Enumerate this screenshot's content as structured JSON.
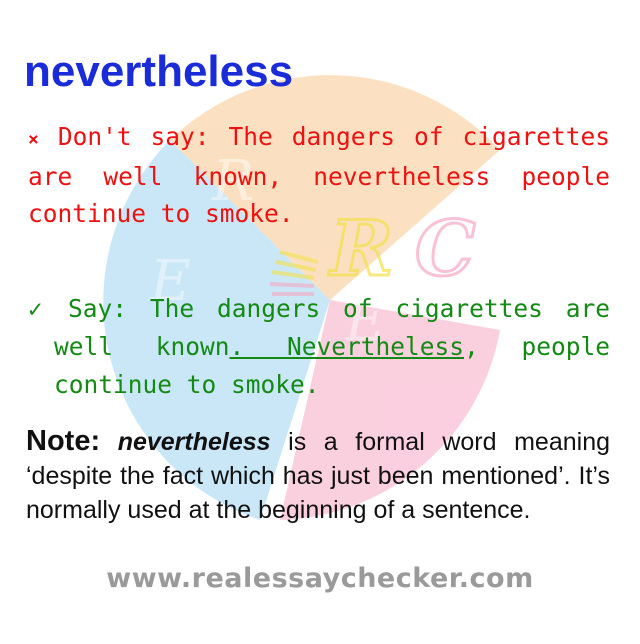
{
  "title": "nevertheless",
  "wrong": {
    "mark": "×",
    "prefix": "Don't say:",
    "sentence": "The dangers of cigarettes are well known, nevertheless people continue to smoke."
  },
  "right": {
    "mark": "✓",
    "prefix": "Say:",
    "part1": "The dangers of cigarettes are well known",
    "underlined": ". Nevertheless",
    "part2": ", people continue to smoke."
  },
  "note": {
    "label": "Note:",
    "term": "nevertheless",
    "text": "is a formal word meaning ‘despite the fact which has just been mentioned’. It’s normally used at the beginning of a sentence."
  },
  "watermark": {
    "letters": [
      "R",
      "E",
      "C"
    ],
    "colors": [
      "#f7c890",
      "#9ed4f0",
      "#f7a8c4",
      "#f5e04a"
    ]
  },
  "website": "www.realessaychecker.com"
}
